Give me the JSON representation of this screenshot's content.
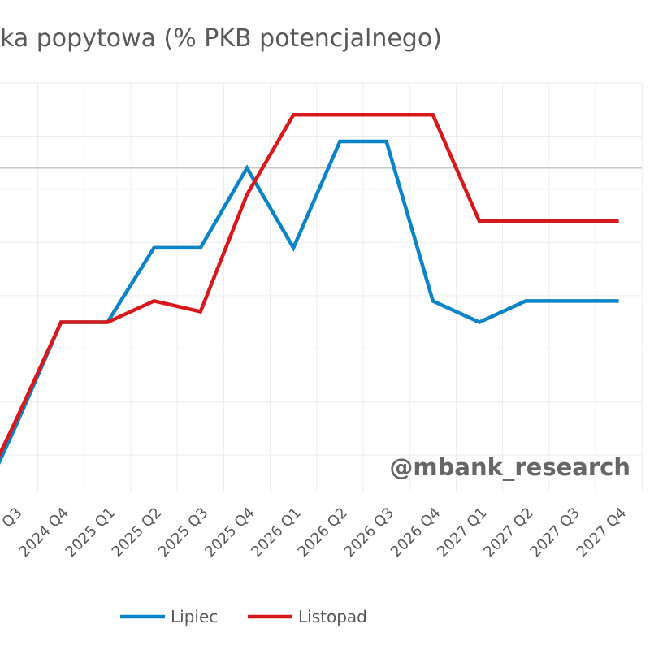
{
  "chart_data": {
    "type": "line",
    "title": "ka popytowa (% PKB potencjalnego)",
    "categories": [
      "Q3",
      "2024 Q4",
      "2025 Q1",
      "2025 Q2",
      "2025 Q3",
      "2025 Q4",
      "2026 Q1",
      "2026 Q2",
      "2026 Q3",
      "2026 Q4",
      "2027 Q1",
      "2027 Q2",
      "2027 Q3",
      "2027 Q4"
    ],
    "series": [
      {
        "name": "Lipiec",
        "color": "#0a84c6",
        "values": [
          -2.5,
          -0.5,
          -0.5,
          0.9,
          0.9,
          2.4,
          0.9,
          2.9,
          2.9,
          -0.1,
          -0.5,
          -0.1,
          -0.1,
          -0.1
        ]
      },
      {
        "name": "Listopad",
        "color": "#d7191c",
        "values": [
          -2.4,
          -0.5,
          -0.5,
          -0.1,
          -0.3,
          1.9,
          3.4,
          3.4,
          3.4,
          3.4,
          1.4,
          1.4,
          1.4,
          1.4
        ]
      }
    ],
    "ylim": [
      -3.7,
      4.0
    ],
    "grid": true,
    "reference_line": 2.4,
    "legend": "bottom-center",
    "watermark": "@mbank_research"
  }
}
